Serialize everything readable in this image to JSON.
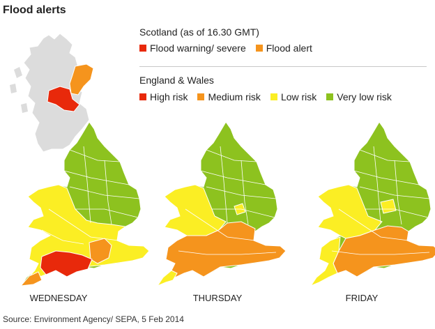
{
  "title": "Flood alerts",
  "scotland": {
    "heading": "Scotland (as of 16.30 GMT)",
    "items": [
      {
        "label": "Flood warning/ severe",
        "color": "#e8290b"
      },
      {
        "label": "Flood alert",
        "color": "#f5941d"
      }
    ]
  },
  "england_wales": {
    "heading": "England & Wales",
    "items": [
      {
        "label": "High risk",
        "color": "#e8290b"
      },
      {
        "label": "Medium risk",
        "color": "#f5941d"
      },
      {
        "label": "Low risk",
        "color": "#fbee24"
      },
      {
        "label": "Very low risk",
        "color": "#8dc21f"
      }
    ]
  },
  "maps": [
    {
      "day": "WEDNESDAY"
    },
    {
      "day": "THURSDAY"
    },
    {
      "day": "FRIDAY"
    }
  ],
  "source": "Source: Environment Agency/ SEPA, 5 Feb 2014",
  "colors": {
    "scotland_land": "#dcdcdc",
    "region_border": "#ffffff",
    "high": "#e8290b",
    "medium": "#f5941d",
    "low": "#fbee24",
    "very_low": "#8dc21f"
  }
}
